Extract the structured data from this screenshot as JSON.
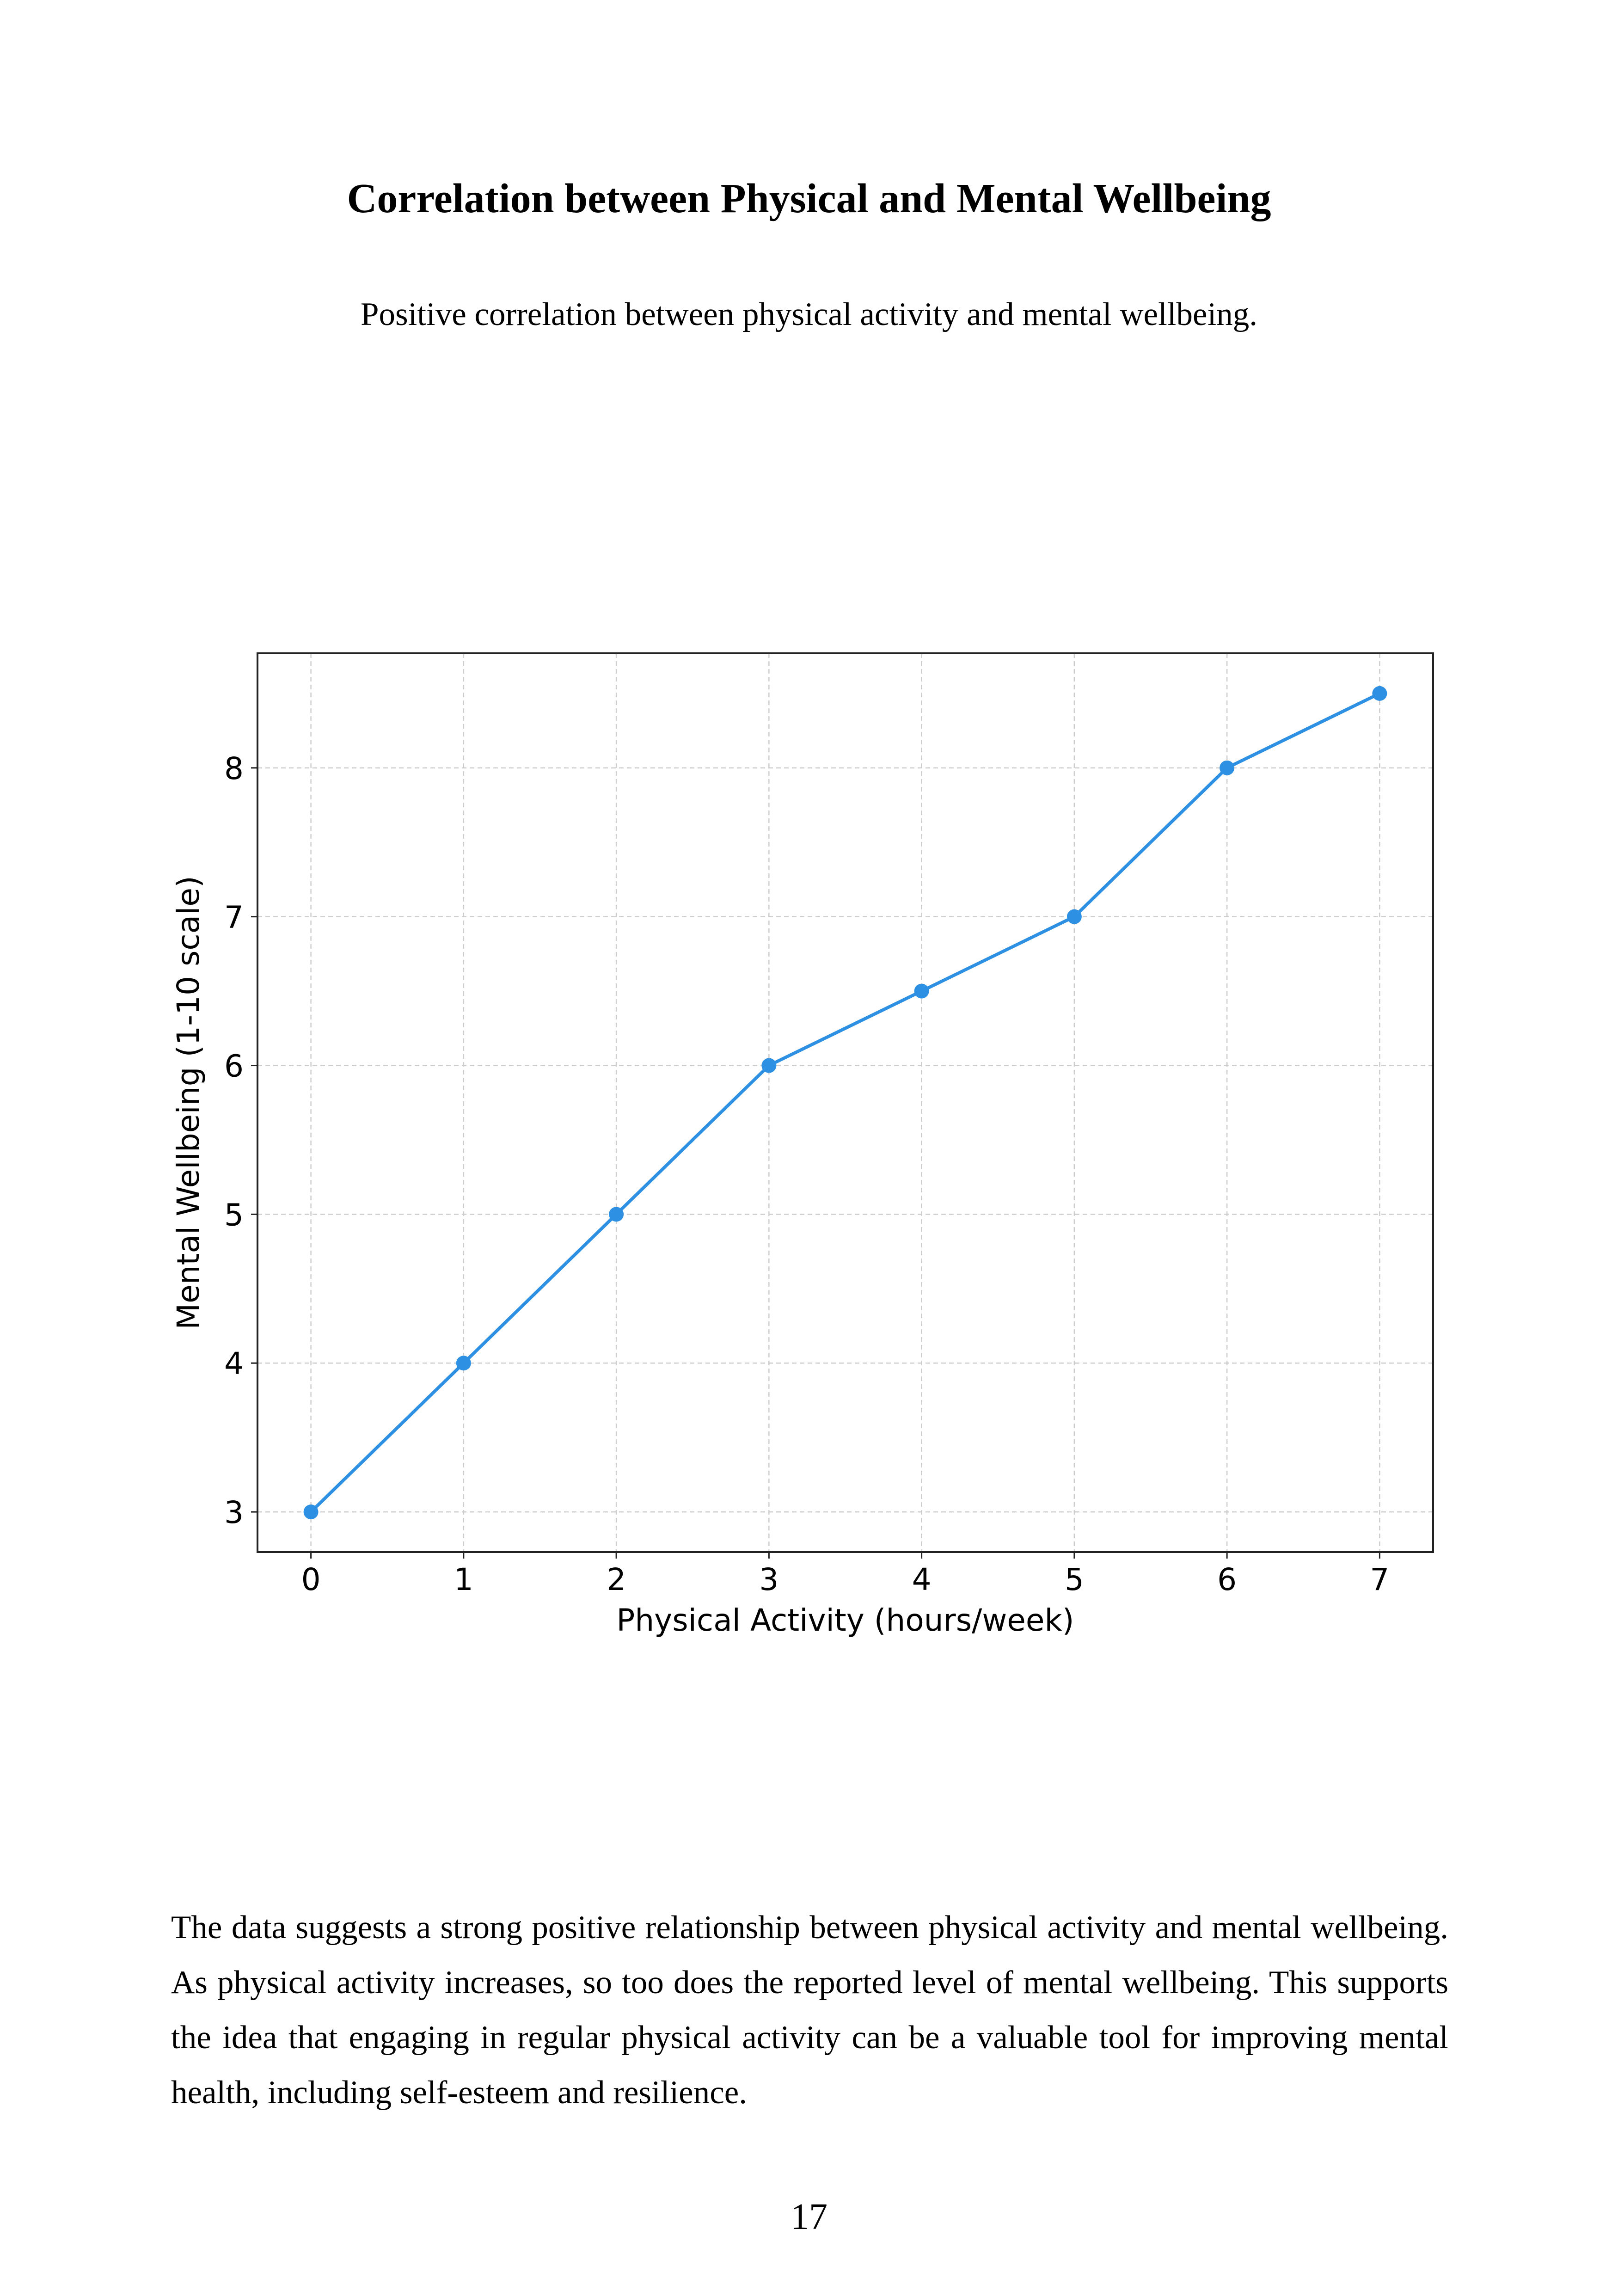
{
  "page": {
    "heading": "Correlation between Physical and Mental Wellbeing",
    "caption": "Positive correlation between physical activity and mental wellbeing.",
    "paragraph": "The data suggests a strong positive relationship between physical activity and mental wellbeing. As physical activity increases, so too does the reported level of mental wellbeing. This supports the idea that engaging in regular physical activity can be a valuable tool for improving mental health, including self-esteem and resilience.",
    "page_number": "17"
  },
  "chart_data": {
    "type": "line",
    "title": "",
    "xlabel": "Physical Activity (hours/week)",
    "ylabel": "Mental Wellbeing (1-10 scale)",
    "x": [
      0,
      1,
      2,
      3,
      4,
      5,
      6,
      7
    ],
    "series": [
      {
        "values": [
          3,
          4,
          5,
          6,
          6.5,
          7,
          8,
          8.5
        ],
        "color": "#2e90e2",
        "marker": "circle"
      }
    ],
    "xlim": [
      -0.35,
      7.35
    ],
    "ylim": [
      2.73,
      8.77
    ],
    "xticks": [
      0,
      1,
      2,
      3,
      4,
      5,
      6,
      7
    ],
    "yticks": [
      3,
      4,
      5,
      6,
      7,
      8
    ],
    "grid": true,
    "grid_style": "dashed"
  }
}
